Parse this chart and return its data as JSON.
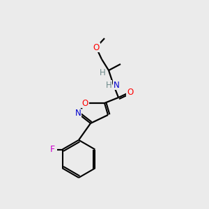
{
  "background_color": "#ebebeb",
  "bond_color": "#000000",
  "atom_colors": {
    "O": "#ff0000",
    "N": "#0000cd",
    "F": "#cc00cc",
    "H": "#6e8b8b",
    "C": "#000000"
  },
  "figsize": [
    3.0,
    3.0
  ],
  "dpi": 100
}
